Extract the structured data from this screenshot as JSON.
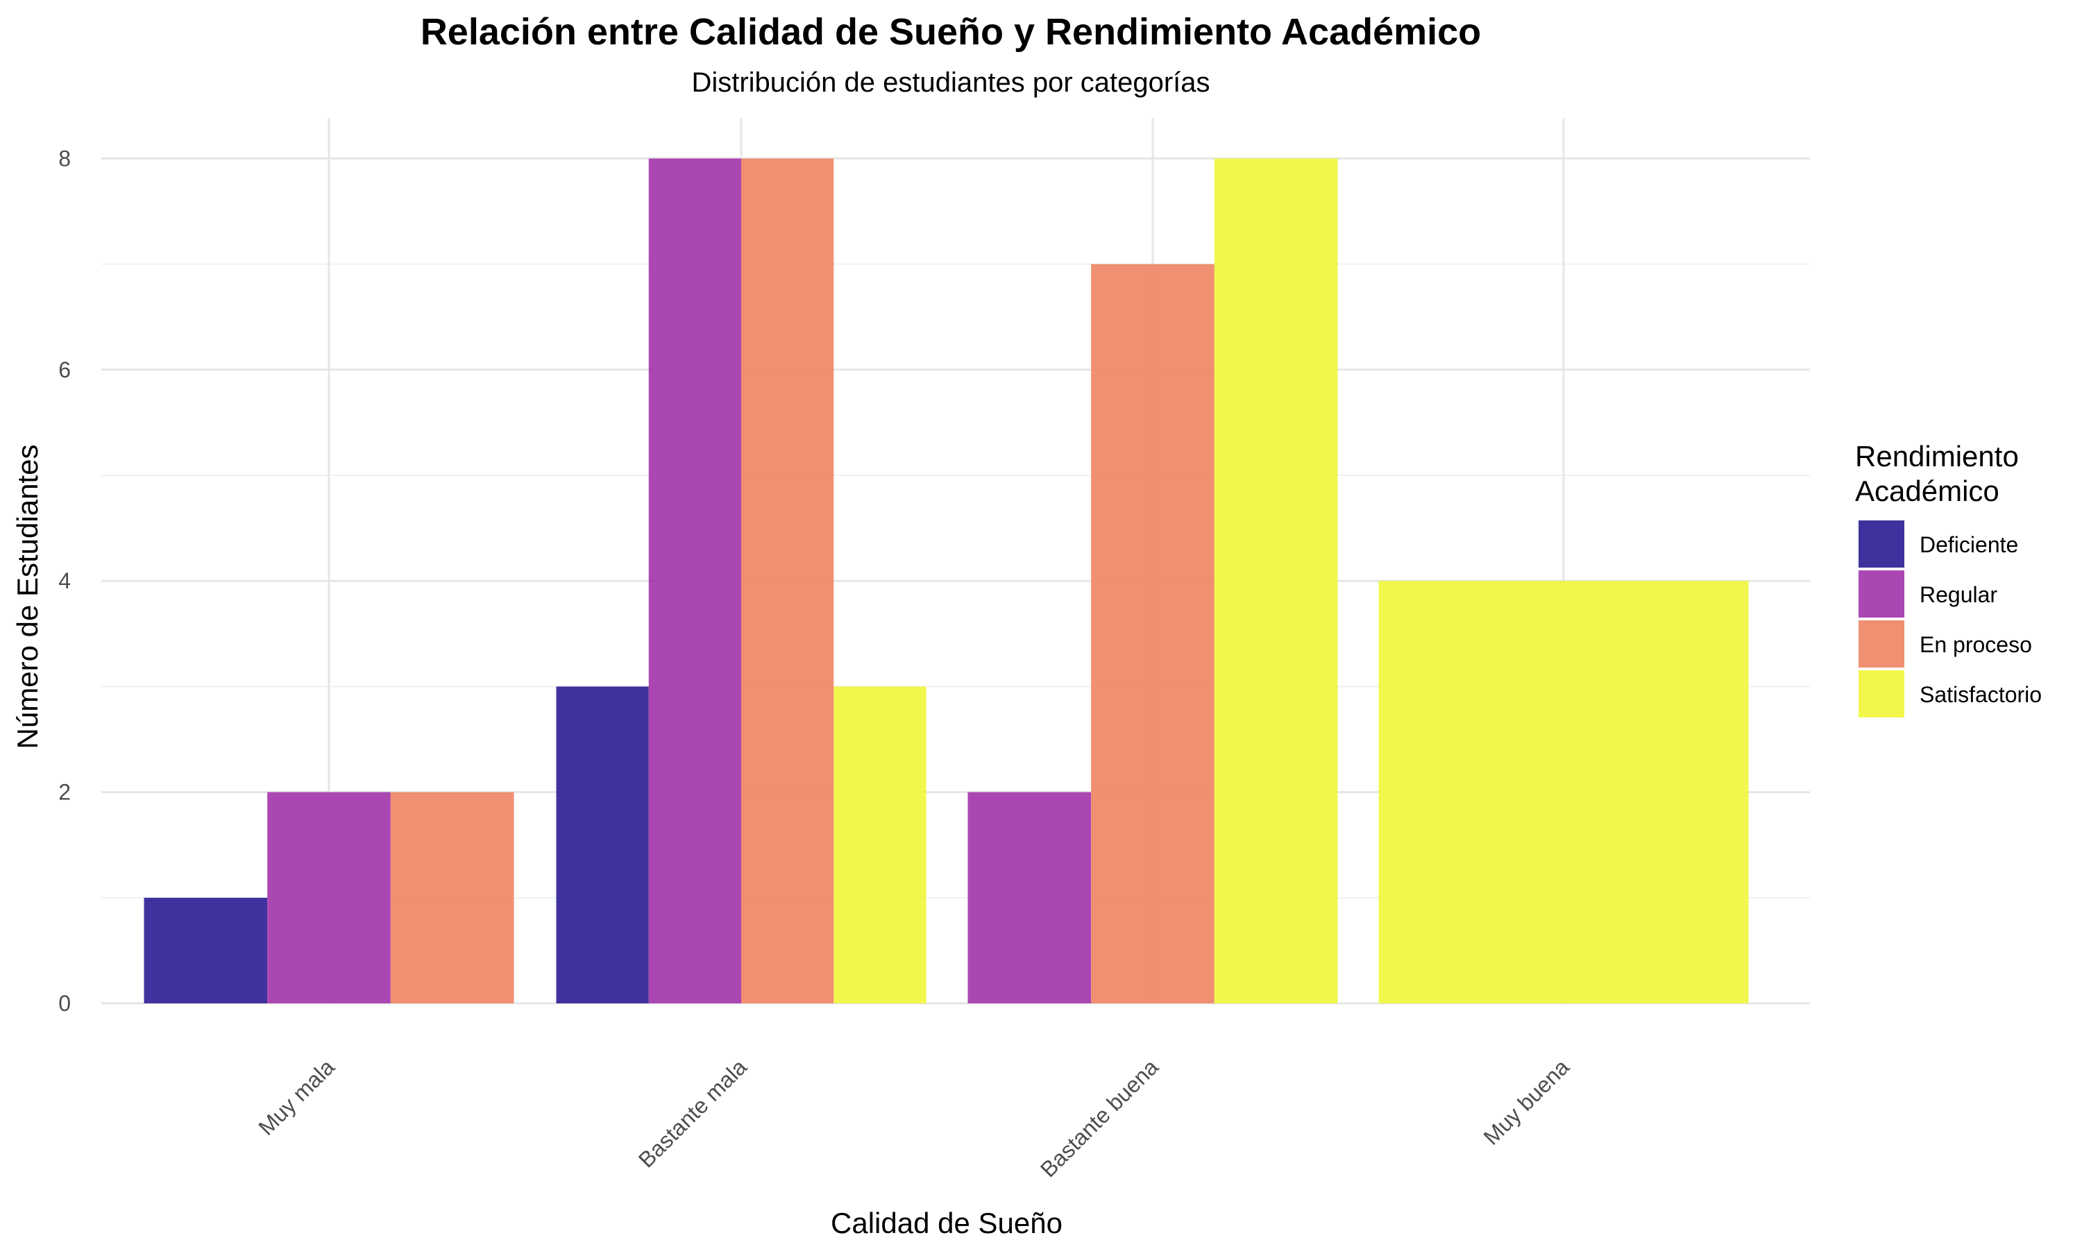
{
  "chart_data": {
    "type": "bar",
    "title": "Relación entre Calidad de Sueño y Rendimiento Académico",
    "subtitle": "Distribución de estudiantes por categorías",
    "xlabel": "Calidad de Sueño",
    "ylabel": "Número de Estudiantes",
    "categories": [
      "Muy mala",
      "Bastante mala",
      "Bastante buena",
      "Muy buena"
    ],
    "ylim": [
      0,
      8.4
    ],
    "yticks": [
      0,
      2,
      4,
      6,
      8
    ],
    "grid": true,
    "legend": {
      "title_lines": [
        "Rendimiento",
        "Académico"
      ],
      "position": "right"
    },
    "series": [
      {
        "name": "Deficiente",
        "color": "#2a1c93",
        "values": [
          1,
          3,
          null,
          null
        ]
      },
      {
        "name": "Regular",
        "color": "#a233ab",
        "values": [
          2,
          8,
          2,
          null
        ]
      },
      {
        "name": "En proceso",
        "color": "#ee8463",
        "values": [
          2,
          8,
          7,
          null
        ]
      },
      {
        "name": "Satisfactorio",
        "color": "#eff638",
        "values": [
          null,
          3,
          8,
          4
        ]
      }
    ]
  }
}
